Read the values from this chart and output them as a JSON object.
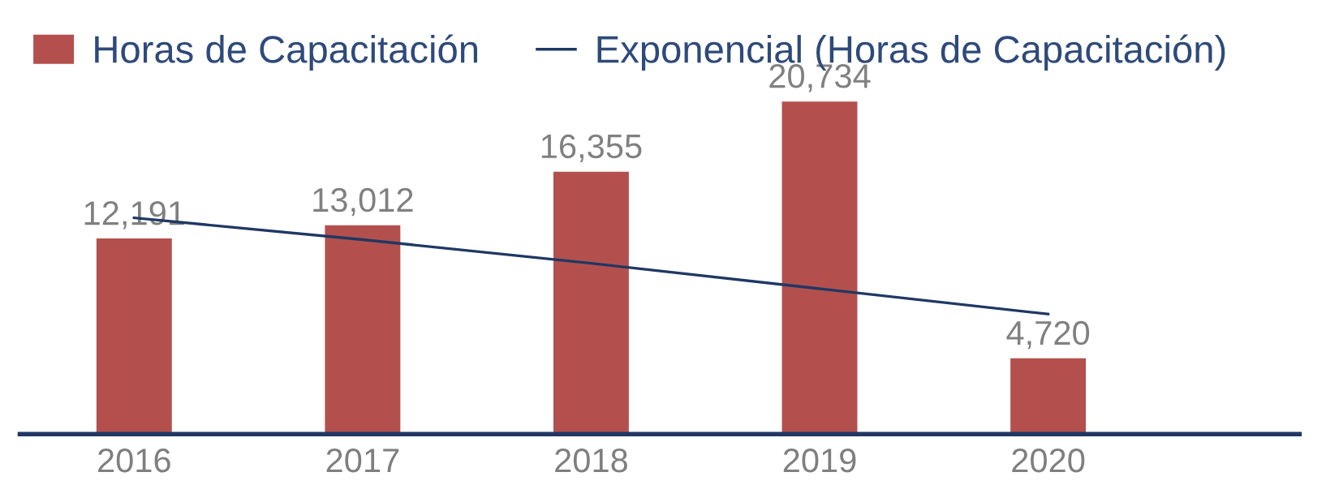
{
  "chart_data": {
    "type": "bar",
    "categories": [
      "2016",
      "2017",
      "2018",
      "2019",
      "2020"
    ],
    "series": [
      {
        "name": "Horas de Capacitación",
        "color": "#b3504d",
        "values": [
          12191,
          13012,
          16355,
          20734,
          4720
        ],
        "value_labels": [
          "12,191",
          "13,012",
          "16,355",
          "20,734",
          "4,720"
        ]
      },
      {
        "name": "Exponencial (Horas de Capacitación)",
        "type": "line",
        "color": "#1f3864",
        "values": [
          13480,
          12120,
          10650,
          9060,
          7480
        ],
        "marker": "none"
      }
    ],
    "legend": "top",
    "grid": false
  }
}
